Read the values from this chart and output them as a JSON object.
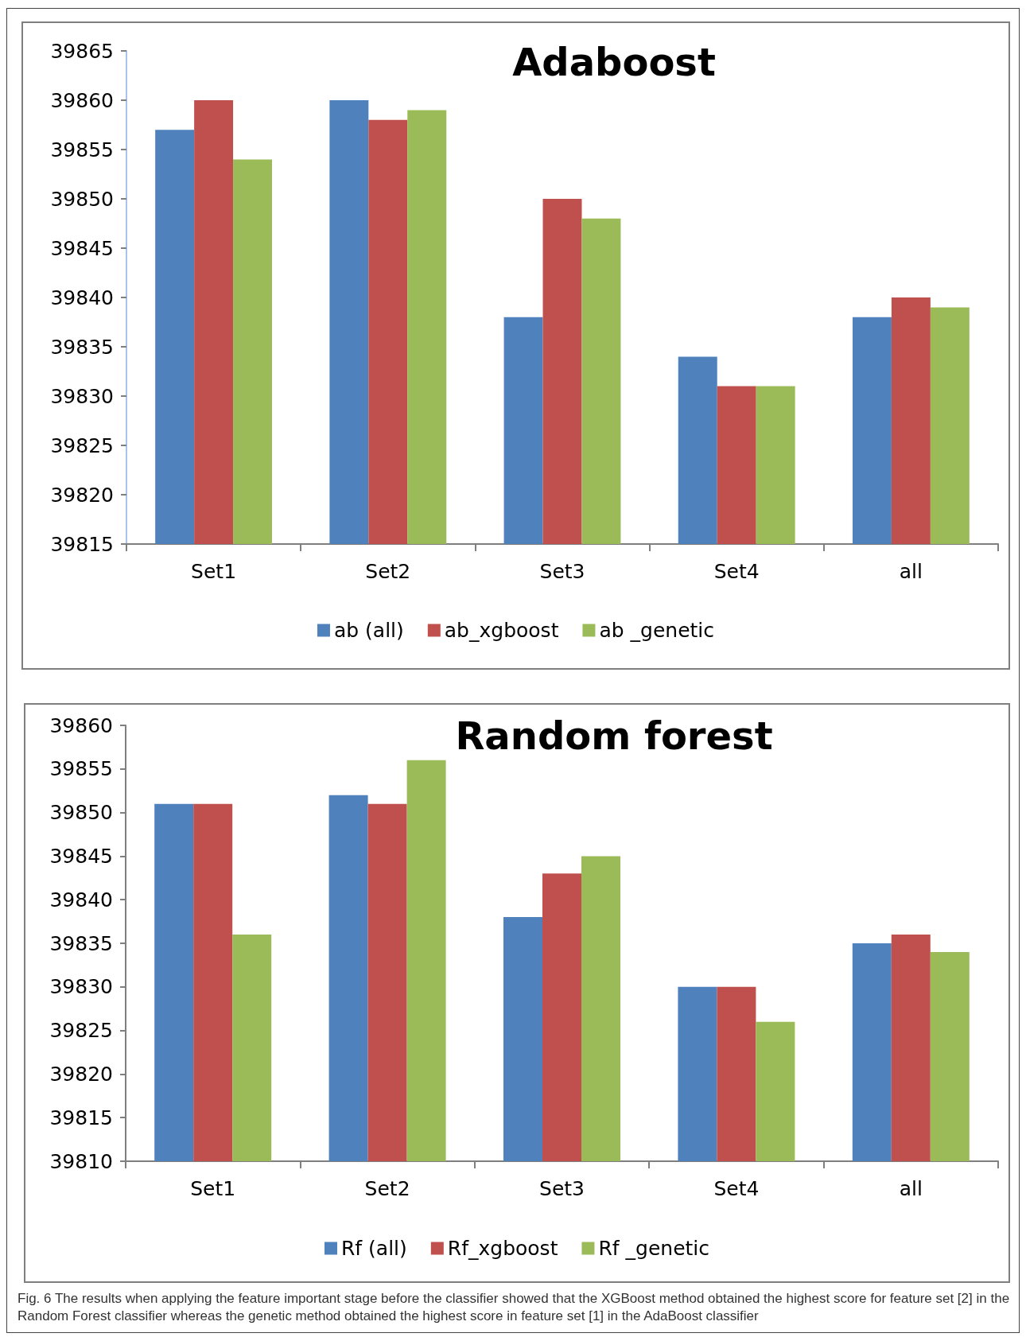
{
  "chart_data": [
    {
      "type": "bar",
      "title": "Adaboost",
      "categories": [
        "Set1",
        "Set2",
        "Set3",
        "Set4",
        "all"
      ],
      "series": [
        {
          "name": "ab (all)",
          "color": "#4f81bd",
          "values": [
            39857,
            39860,
            39838,
            39834,
            39838
          ]
        },
        {
          "name": "ab_xgboost",
          "color": "#c0504d",
          "values": [
            39860,
            39858,
            39850,
            39831,
            39840
          ]
        },
        {
          "name": "ab _genetic",
          "color": "#9bbb59",
          "values": [
            39854,
            39859,
            39848,
            39831,
            39839
          ]
        }
      ],
      "ylim": [
        39815,
        39865
      ],
      "yticks": [
        39815,
        39820,
        39825,
        39830,
        39835,
        39840,
        39845,
        39850,
        39855,
        39860,
        39865
      ],
      "grid": false,
      "legend": "bottom"
    },
    {
      "type": "bar",
      "title": "Random forest",
      "categories": [
        "Set1",
        "Set2",
        "Set3",
        "Set4",
        "all"
      ],
      "series": [
        {
          "name": "Rf (all)",
          "color": "#4f81bd",
          "values": [
            39851,
            39852,
            39838,
            39830,
            39835
          ]
        },
        {
          "name": "Rf_xgboost",
          "color": "#c0504d",
          "values": [
            39851,
            39851,
            39843,
            39830,
            39836
          ]
        },
        {
          "name": "Rf _genetic",
          "color": "#9bbb59",
          "values": [
            39836,
            39856,
            39845,
            39826,
            39834
          ]
        }
      ],
      "ylim": [
        39810,
        39860
      ],
      "yticks": [
        39810,
        39815,
        39820,
        39825,
        39830,
        39835,
        39840,
        39845,
        39850,
        39855,
        39860
      ],
      "grid": false,
      "legend": "bottom",
      "annotations": [
        "Fig. 6  The results when applying the feature important stage before the classifier showed that the XGBoost method obtained the highest score for feature set [2] in the Random Forest classifier whereas the genetic method obtained the highest score in feature set [1] in the AdaBoost classifier"
      ]
    }
  ]
}
